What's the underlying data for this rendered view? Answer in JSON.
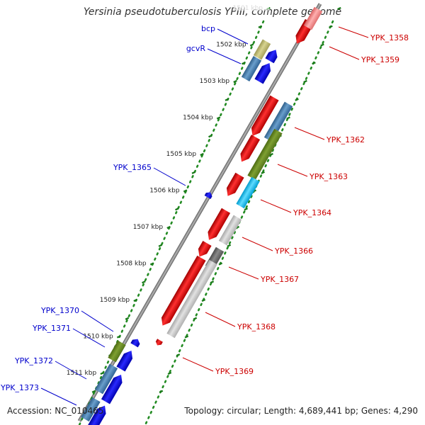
{
  "title": "Yersinia pseudotuberculosis YPIII, complete genome",
  "accession_label": "Accession: NC_010465",
  "summary_label": "Topology: circular; Length: 4,689,441 bp; Genes: 4,290",
  "colors": {
    "forward_gene": "#ff0000",
    "reverse_gene": "#0000ff",
    "label_forward": "#cc0000",
    "label_reverse": "#0000cc",
    "backbone": "#777777",
    "ruler_dots": "#228b22",
    "cog_olive": "#6b8e23",
    "cog_steel": "#4682b4",
    "cog_khaki": "#bdb76b",
    "cog_cyan": "#00bfff",
    "cog_lightgray": "#c8c8c8",
    "cog_darkgray": "#696969"
  },
  "scale_ticks": [
    "1501 kbp",
    "1502 kbp",
    "1503 kbp",
    "1504 kbp",
    "1505 kbp",
    "1506 kbp",
    "1507 kbp",
    "1508 kbp",
    "1509 kbp",
    "1510 kbp",
    "1511 kbp"
  ],
  "forward_labels": [
    "YPK_1358",
    "YPK_1359",
    "YPK_1362",
    "YPK_1363",
    "YPK_1364",
    "YPK_1366",
    "YPK_1367",
    "YPK_1368",
    "YPK_1369"
  ],
  "reverse_labels": [
    "bcp",
    "gcvR",
    "YPK_1365",
    "YPK_1370",
    "YPK_1371",
    "YPK_1372",
    "YPK_1373"
  ]
}
